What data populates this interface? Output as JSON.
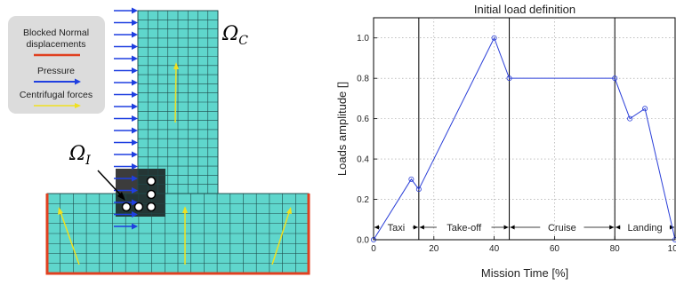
{
  "left_figure": {
    "legend": {
      "blocked_label_1": "Blocked Normal",
      "blocked_label_2": "displacements",
      "pressure_label": "Pressure",
      "centrifugal_label": "Centrifugal forces"
    },
    "domain_c_label": "Ω",
    "domain_c_subscript": "C",
    "domain_i_label": "Ω",
    "domain_i_subscript": "I",
    "colors": {
      "mesh_fill": "#5fd6cc",
      "mesh_line": "#1e4a4a",
      "blocked": "#e04020",
      "pressure": "#1f3fe0",
      "centrifugal": "#f0e020",
      "legend_bg": "#dcdcdc"
    }
  },
  "chart_data": {
    "type": "line",
    "title": "Initial load definition",
    "xlabel": "Mission Time [%]",
    "ylabel": "Loads amplitude []",
    "xlim": [
      0,
      100
    ],
    "ylim": [
      0,
      1.1
    ],
    "grid": true,
    "x_ticks": [
      "0",
      "20",
      "40",
      "60",
      "80",
      "100"
    ],
    "y_ticks": [
      "0.0",
      "0.2",
      "0.4",
      "0.6",
      "0.8",
      "1.0"
    ],
    "x_tick_values": [
      0,
      20,
      40,
      60,
      80,
      100
    ],
    "y_tick_values": [
      0,
      0.2,
      0.4,
      0.6,
      0.8,
      1.0
    ],
    "series": [
      {
        "color": "#2b3fd8",
        "x": [
          0,
          12.5,
          15,
          40,
          45,
          80,
          85,
          90,
          100
        ],
        "y": [
          0,
          0.3,
          0.25,
          1.0,
          0.8,
          0.8,
          0.6,
          0.65,
          0
        ]
      }
    ],
    "phase_boundaries": [
      15,
      45,
      80
    ],
    "phases": [
      {
        "label": "Taxi",
        "start": 0,
        "end": 15
      },
      {
        "label": "Take-off",
        "start": 15,
        "end": 45
      },
      {
        "label": "Cruise",
        "start": 45,
        "end": 80
      },
      {
        "label": "Landing",
        "start": 80,
        "end": 100
      }
    ]
  }
}
